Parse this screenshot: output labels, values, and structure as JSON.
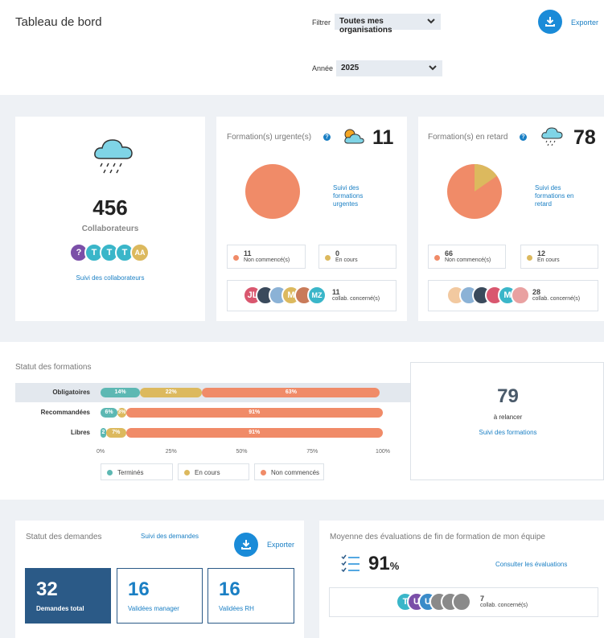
{
  "header": {
    "title": "Tableau de bord",
    "filter_label": "Filtrer",
    "filter_value": "Toutes mes organisations",
    "year_label": "Année",
    "year_value": "2025",
    "export_label": "Exporter"
  },
  "collaborateurs": {
    "count": "456",
    "label": "Collaborateurs",
    "avatars": [
      "?",
      "T",
      "T",
      "T",
      "AA"
    ],
    "link": "Suivi des collaborateurs"
  },
  "urgentes": {
    "title": "Formation(s) urgente(s)",
    "count": "11",
    "link": "Suivi des formations urgentes",
    "not_started_value": "11",
    "not_started_label": "Non commencé(s)",
    "in_progress_value": "0",
    "in_progress_label": "En cours",
    "avatars": [
      "JL",
      "",
      "",
      "M",
      "",
      "MZ"
    ],
    "concerned_value": "11",
    "concerned_label": "collab. concerné(s)",
    "pie": {
      "not_started": 11,
      "in_progress": 0
    }
  },
  "retard": {
    "title": "Formation(s) en retard",
    "count": "78",
    "link": "Suivi des formations en retard",
    "not_started_value": "66",
    "not_started_label": "Non commencé(s)",
    "in_progress_value": "12",
    "in_progress_label": "En cours",
    "avatars": [
      "",
      "",
      "",
      "",
      "M",
      ""
    ],
    "concerned_value": "28",
    "concerned_label": "collab. concerné(s)",
    "pie": {
      "not_started": 66,
      "in_progress": 12
    }
  },
  "statut_formations": {
    "title": "Statut des formations",
    "relance_count": "79",
    "relance_label": "à relancer",
    "link": "Suivi des formations",
    "legend": [
      "Terminés",
      "En cours",
      "Non commencés"
    ]
  },
  "chart_data": {
    "type": "bar",
    "orientation": "horizontal",
    "stacked": true,
    "categories": [
      "Obligatoires",
      "Recommandées",
      "Libres"
    ],
    "series": [
      {
        "name": "Terminés",
        "color": "#5db8b3",
        "values": [
          14,
          6,
          2
        ],
        "labels": [
          "14%",
          "6%",
          "2"
        ]
      },
      {
        "name": "En cours",
        "color": "#dcb95e",
        "values": [
          22,
          3,
          7
        ],
        "labels": [
          "22%",
          "3%",
          "7%"
        ]
      },
      {
        "name": "Non commencés",
        "color": "#f08b68",
        "values": [
          63,
          91,
          91
        ],
        "labels": [
          "63%",
          "91%",
          "91%"
        ]
      }
    ],
    "xticks": [
      "0%",
      "25%",
      "50%",
      "75%",
      "100%"
    ],
    "xlim": [
      0,
      100
    ]
  },
  "demandes": {
    "title": "Statut des demandes",
    "link": "Suivi des demandes",
    "export_label": "Exporter",
    "total_value": "32",
    "total_label": "Demandes total",
    "manager_value": "16",
    "manager_label": "Validées manager",
    "rh_value": "16",
    "rh_label": "Validées RH"
  },
  "evaluations": {
    "title": "Moyenne des évaluations de fin de formation de mon équipe",
    "value": "91",
    "unit": "%",
    "link": "Consulter les évaluations",
    "avatars": [
      "T",
      "U",
      "U",
      "",
      "",
      ""
    ],
    "concerned_value": "7",
    "concerned_label": "collab. concerné(s)"
  },
  "colors": {
    "accent": "#1a8bd8",
    "teal": "#5db8b3",
    "yellow": "#dcb95e",
    "orange": "#f08b68",
    "navy": "#2b5a87"
  }
}
